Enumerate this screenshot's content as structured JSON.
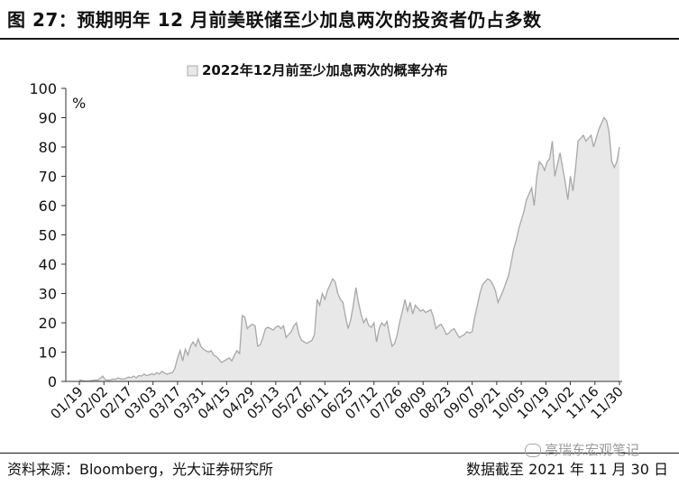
{
  "header": {
    "title": "图 27：预期明年 12 月前美联储至少加息两次的投资者仍占多数"
  },
  "footer": {
    "source": "资料来源：Bloomberg，光大证券研究所",
    "cutoff": "数据截至 2021 年 11 月 30 日",
    "watermark": "高瑞东宏观笔记"
  },
  "colors": {
    "area_fill": "#e8e8e8",
    "area_line": "#a8a8a8",
    "axis": "#333333",
    "text": "#111111"
  },
  "chart_data": {
    "type": "area",
    "title": "",
    "legend": [
      "2022年12月前至少加息两次的概率分布"
    ],
    "legend_position": "top-center",
    "ylabel": "%",
    "ylim": [
      0,
      100
    ],
    "yticks": [
      0,
      10,
      20,
      30,
      40,
      50,
      60,
      70,
      80,
      90,
      100
    ],
    "xticks": [
      "01/19",
      "02/02",
      "02/17",
      "03/03",
      "03/17",
      "03/31",
      "04/15",
      "04/29",
      "05/13",
      "05/27",
      "06/11",
      "06/25",
      "07/12",
      "07/26",
      "08/09",
      "08/23",
      "09/07",
      "09/21",
      "10/05",
      "10/19",
      "11/02",
      "11/16",
      "11/30"
    ],
    "grid": false,
    "series": [
      {
        "name": "2022年12月前至少加息两次的概率分布",
        "values": [
          0.5,
          0.3,
          0.2,
          0.1,
          0.2,
          0.3,
          0.5,
          0.4,
          1.0,
          1.8,
          0.6,
          0.4,
          0.5,
          0.8,
          0.7,
          1.2,
          0.9,
          0.8,
          1.0,
          1.5,
          1.3,
          1.8,
          1.2,
          2.0,
          1.8,
          2.5,
          2.0,
          2.2,
          2.6,
          2.3,
          3.0,
          2.5,
          3.5,
          2.8,
          2.5,
          2.8,
          3.0,
          4.5,
          8.0,
          10.5,
          7.0,
          11.0,
          9.0,
          12.0,
          13.5,
          12.0,
          14.5,
          12.0,
          11.0,
          10.5,
          10.0,
          10.5,
          9.0,
          8.5,
          7.5,
          6.5,
          7.0,
          7.5,
          8.0,
          7.0,
          9.0,
          10.5,
          9.5,
          22.5,
          22.0,
          18.0,
          19.0,
          19.5,
          19.0,
          12.0,
          12.5,
          15.0,
          18.0,
          18.5,
          18.0,
          17.5,
          18.5,
          19.0,
          18.0,
          19.0,
          15.0,
          16.0,
          17.0,
          19.0,
          20.0,
          16.0,
          14.0,
          13.5,
          13.0,
          13.5,
          14.0,
          16.0,
          28.0,
          26.0,
          30.0,
          28.0,
          31.0,
          33.0,
          35.0,
          34.0,
          30.0,
          28.0,
          27.0,
          22.0,
          18.0,
          21.0,
          26.0,
          32.0,
          27.0,
          23.0,
          20.0,
          21.5,
          19.0,
          18.5,
          20.0,
          13.5,
          18.0,
          20.0,
          19.0,
          20.5,
          16.0,
          12.0,
          13.0,
          16.0,
          20.5,
          24.0,
          28.0,
          24.0,
          27.0,
          23.0,
          26.0,
          25.0,
          24.0,
          24.5,
          23.5,
          24.0,
          24.5,
          22.0,
          18.0,
          19.0,
          19.5,
          18.0,
          16.0,
          16.5,
          17.5,
          18.0,
          16.5,
          15.0,
          15.5,
          16.0,
          17.0,
          16.5,
          17.0,
          22.0,
          26.0,
          30.0,
          33.0,
          34.0,
          35.0,
          34.5,
          33.0,
          31.0,
          27.0,
          29.0,
          31.0,
          33.5,
          36.0,
          40.0,
          45.0,
          48.0,
          52.0,
          55.0,
          58.0,
          62.0,
          64.0,
          66.0,
          60.0,
          70.0,
          75.0,
          74.0,
          72.0,
          75.0,
          76.0,
          82.0,
          70.0,
          74.0,
          78.0,
          73.0,
          68.0,
          62.0,
          70.0,
          65.0,
          73.0,
          82.0,
          83.0,
          84.0,
          82.0,
          83.0,
          84.0,
          80.0,
          83.0,
          86.0,
          88.0,
          90.0,
          89.0,
          85.0,
          75.0,
          73.0,
          75.0,
          80.0
        ]
      }
    ]
  }
}
